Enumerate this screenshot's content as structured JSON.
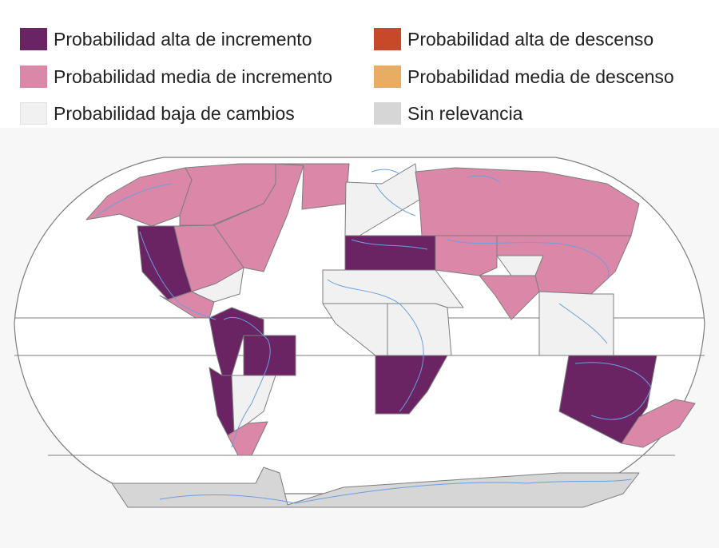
{
  "legend": [
    {
      "label": "Probabilidad alta de incremento",
      "color": "#6b2463"
    },
    {
      "label": "Probabilidad alta de descenso",
      "color": "#c8482a"
    },
    {
      "label": "Probabilidad media de incremento",
      "color": "#db87a8"
    },
    {
      "label": "Probabilidad media de descenso",
      "color": "#e8ad62"
    },
    {
      "label": "Probabilidad baja de cambios",
      "color": "#f1f1f1"
    },
    {
      "label": "Sin relevancia",
      "color": "#d6d6d6"
    }
  ],
  "map": {
    "background": "#ffffff",
    "border_color": "#7d7d7d",
    "coast_color": "#6a9fe0",
    "regions": [
      {
        "name": "alaska",
        "category": "Probabilidad media de incremento"
      },
      {
        "name": "canada-west",
        "category": "Probabilidad media de incremento"
      },
      {
        "name": "canada-east",
        "category": "Probabilidad media de incremento"
      },
      {
        "name": "greenland",
        "category": "Probabilidad media de incremento"
      },
      {
        "name": "north-america-west",
        "category": "Probabilidad alta de incremento"
      },
      {
        "name": "north-america-central",
        "category": "Probabilidad media de incremento"
      },
      {
        "name": "north-america-east",
        "category": "Probabilidad baja de cambios"
      },
      {
        "name": "central-america",
        "category": "Probabilidad media de incremento"
      },
      {
        "name": "amazon",
        "category": "Probabilidad alta de incremento"
      },
      {
        "name": "north-east-brazil",
        "category": "Probabilidad alta de incremento"
      },
      {
        "name": "west-coast-south-america",
        "category": "Probabilidad alta de incremento"
      },
      {
        "name": "south-eastern-south-america",
        "category": "Probabilidad baja de cambios"
      },
      {
        "name": "southern-south-america",
        "category": "Probabilidad media de incremento"
      },
      {
        "name": "northern-europe",
        "category": "Probabilidad baja de cambios"
      },
      {
        "name": "mediterranean",
        "category": "Probabilidad alta de incremento"
      },
      {
        "name": "sahara",
        "category": "Probabilidad baja de cambios"
      },
      {
        "name": "west-africa",
        "category": "Probabilidad baja de cambios"
      },
      {
        "name": "east-africa",
        "category": "Probabilidad baja de cambios"
      },
      {
        "name": "southern-africa",
        "category": "Probabilidad alta de incremento"
      },
      {
        "name": "northern-asia",
        "category": "Probabilidad media de incremento"
      },
      {
        "name": "central-asia",
        "category": "Probabilidad media de incremento"
      },
      {
        "name": "tibetan-plateau",
        "category": "Probabilidad baja de cambios"
      },
      {
        "name": "south-asia",
        "category": "Probabilidad media de incremento"
      },
      {
        "name": "east-asia",
        "category": "Probabilidad media de incremento"
      },
      {
        "name": "south-east-asia",
        "category": "Probabilidad baja de cambios"
      },
      {
        "name": "australia",
        "category": "Probabilidad alta de incremento"
      },
      {
        "name": "new-zealand",
        "category": "Probabilidad media de incremento"
      },
      {
        "name": "antarctica",
        "category": "Sin relevancia"
      }
    ]
  }
}
